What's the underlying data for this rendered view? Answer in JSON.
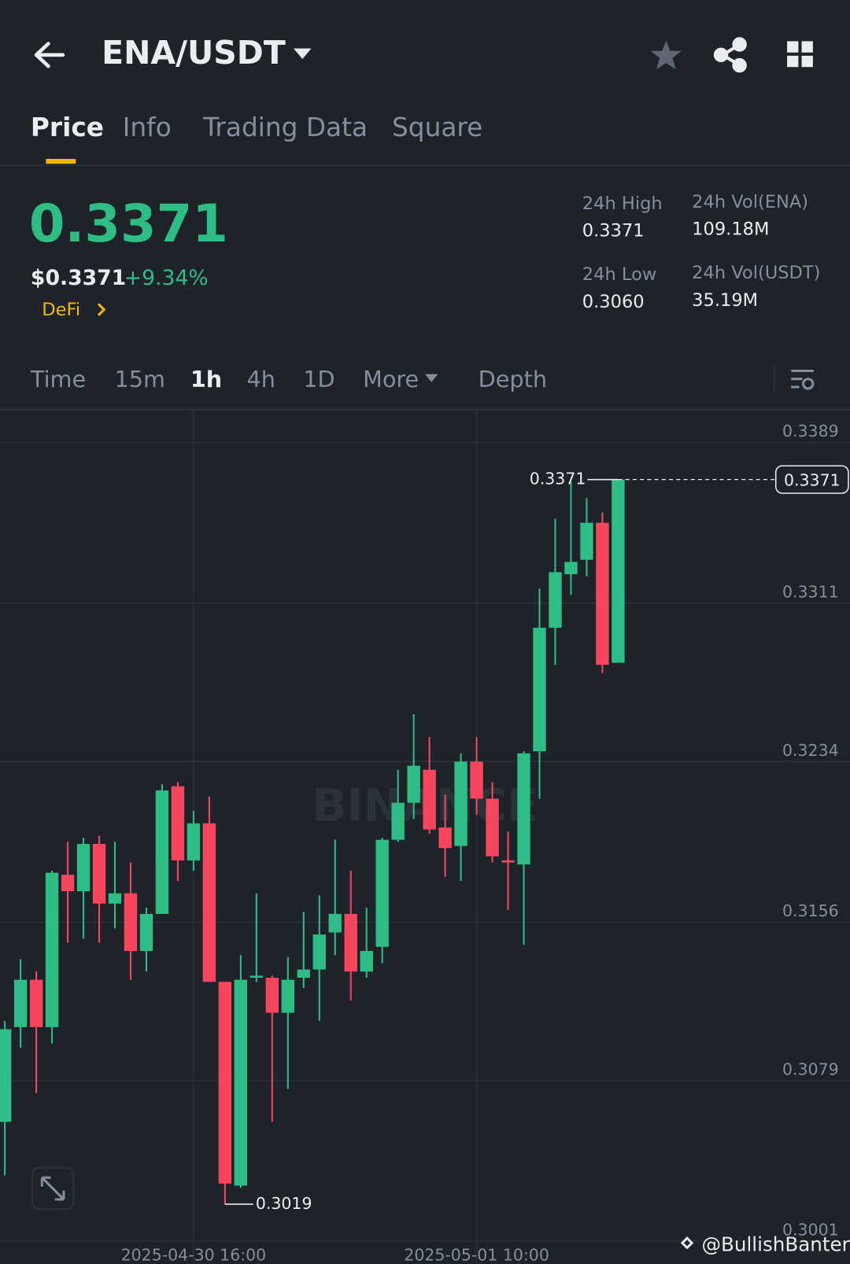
{
  "header": {
    "pair": "ENA/USDT",
    "tabs": [
      "Price",
      "Info",
      "Trading Data",
      "Square"
    ]
  },
  "ticker": {
    "price": "0.3371",
    "usd_price": "$0.3371",
    "change": "+9.34%",
    "tag": "DeFi",
    "stats": [
      {
        "label": "24h High",
        "value": "0.3371"
      },
      {
        "label": "24h Low",
        "value": "0.3060"
      },
      {
        "label": "24h Vol(ENA)",
        "value": "109.18M"
      },
      {
        "label": "24h Vol(USDT)",
        "value": "35.19M"
      }
    ]
  },
  "intervals": [
    "Time",
    "15m",
    "1h",
    "4h",
    "1D",
    "More",
    "Depth"
  ],
  "chart_data": {
    "type": "candlestick",
    "watermark": "BINANCE",
    "categories": [
      null,
      null,
      null,
      null,
      null,
      null,
      null,
      null,
      null,
      null,
      null,
      null,
      "2025-04-30 16:00",
      null,
      null,
      null,
      null,
      null,
      null,
      null,
      null,
      null,
      null,
      null,
      null,
      null,
      null,
      null,
      null,
      null,
      "2025-05-01 10:00",
      null,
      null,
      null,
      null,
      null,
      null,
      null,
      null,
      null
    ],
    "open": [
      0.3059,
      0.3105,
      0.3128,
      0.3105,
      0.3179,
      0.3171,
      0.3194,
      0.3165,
      0.317,
      0.3142,
      0.316,
      0.3222,
      0.3186,
      0.3204,
      0.3127,
      0.3028,
      0.3129,
      0.3129,
      0.3112,
      0.3129,
      0.3133,
      0.3151,
      0.316,
      0.3132,
      0.3144,
      0.3196,
      0.3214,
      0.323,
      0.3202,
      0.3193,
      0.3234,
      0.3216,
      0.3186,
      0.3184,
      0.3239,
      0.3299,
      0.3325,
      0.3332,
      0.335,
      0.3282
    ],
    "high": [
      0.3108,
      0.3138,
      0.3132,
      0.3181,
      0.3195,
      0.3197,
      0.3198,
      0.3195,
      0.3185,
      0.3163,
      0.3223,
      0.3224,
      0.321,
      0.3217,
      0.3127,
      0.314,
      0.317,
      0.313,
      0.3139,
      0.3161,
      0.3169,
      0.3196,
      0.3181,
      0.3163,
      0.3197,
      0.323,
      0.3257,
      0.3246,
      0.3218,
      0.3238,
      0.3246,
      0.3224,
      0.32,
      0.3239,
      0.3318,
      0.3352,
      0.337,
      0.3362,
      0.3355,
      0.3371
    ],
    "low": [
      0.3033,
      0.3095,
      0.3073,
      0.3097,
      0.3146,
      0.3148,
      0.3146,
      0.3153,
      0.3128,
      0.3132,
      0.316,
      0.3176,
      0.3181,
      0.3127,
      0.3019,
      0.3027,
      0.3127,
      0.3059,
      0.3075,
      0.3124,
      0.3108,
      0.314,
      0.3118,
      0.3129,
      0.3136,
      0.3195,
      0.3206,
      0.3199,
      0.3178,
      0.3176,
      0.3208,
      0.3185,
      0.3162,
      0.3145,
      0.3216,
      0.3281,
      0.3315,
      0.3324,
      0.3277,
      0.3282
    ],
    "close": [
      0.3104,
      0.3128,
      0.3105,
      0.318,
      0.3171,
      0.3194,
      0.3165,
      0.317,
      0.3142,
      0.316,
      0.322,
      0.3186,
      0.3204,
      0.3127,
      0.3029,
      0.3128,
      0.313,
      0.3112,
      0.3128,
      0.3133,
      0.315,
      0.316,
      0.3132,
      0.3142,
      0.3196,
      0.3214,
      0.3232,
      0.3201,
      0.3192,
      0.3234,
      0.3216,
      0.3188,
      0.3185,
      0.3238,
      0.3299,
      0.3326,
      0.3331,
      0.335,
      0.3281,
      0.3371
    ],
    "up_color": "#2ebd85",
    "down_color": "#f6465d",
    "ylim": [
      0.2999,
      0.3405
    ],
    "yticks": [
      0.3389,
      0.3311,
      0.3234,
      0.3156,
      0.3079,
      0.3001
    ],
    "grid": true,
    "high_marker": 0.3371,
    "low_marker": 0.3019,
    "last_price": 0.3371,
    "credit": "@BullishBanter"
  }
}
